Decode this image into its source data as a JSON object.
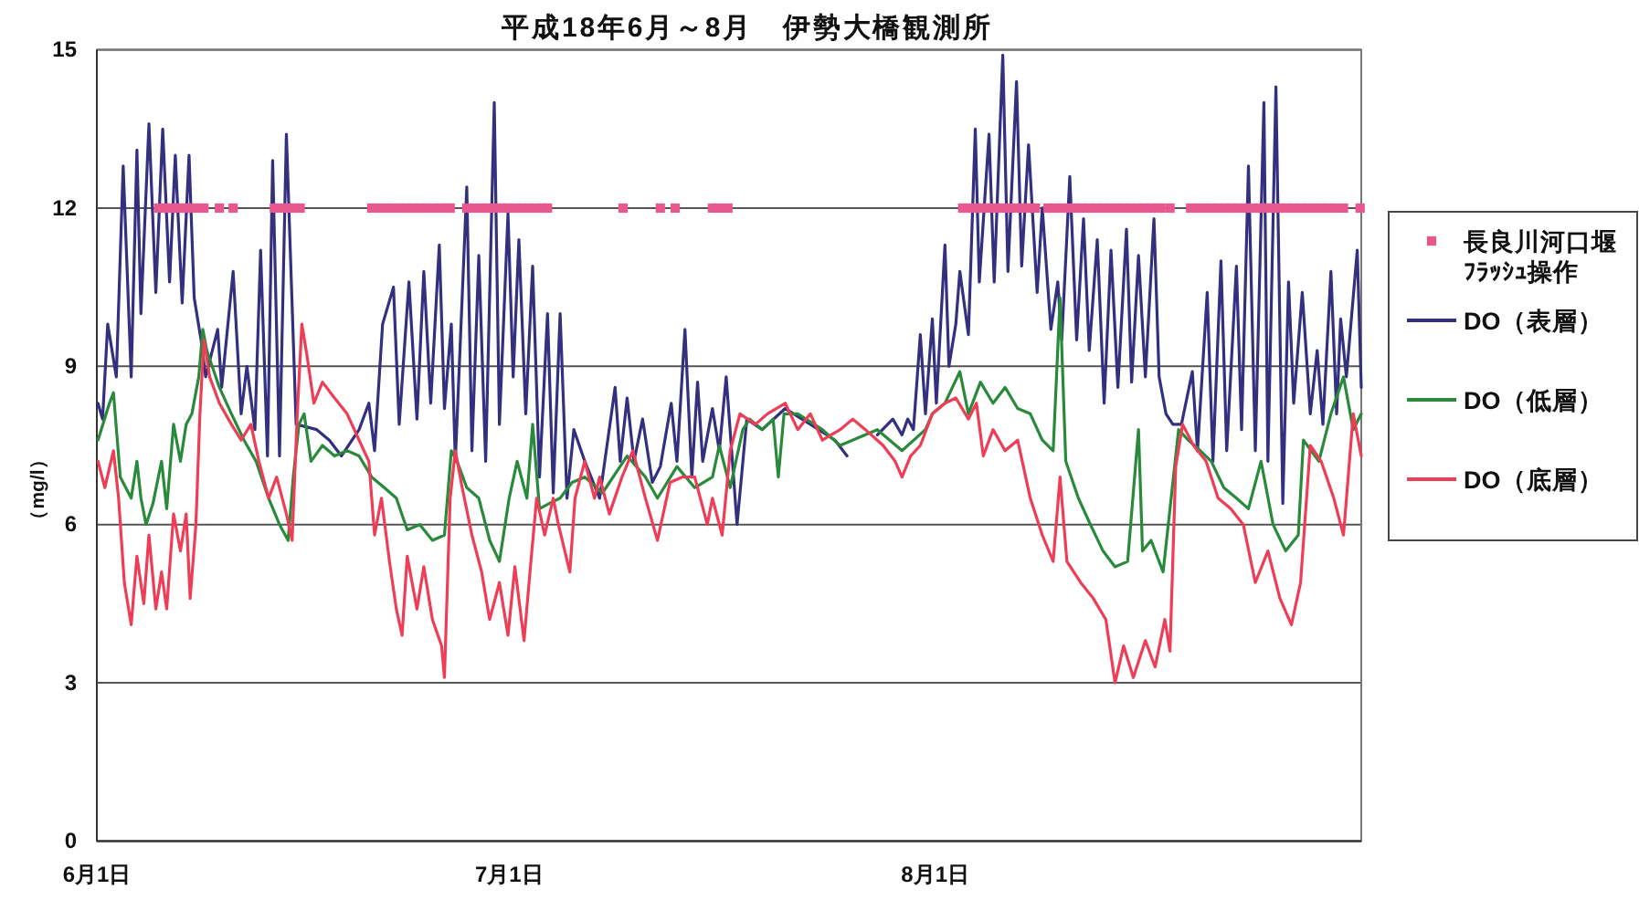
{
  "chart_data": {
    "type": "line",
    "title": "平成18年6月～8月　伊勢大橋観測所",
    "ylabel": "（mg/l）",
    "xlim": [
      "--06-01",
      "--09-01"
    ],
    "ylim": [
      0,
      15
    ],
    "xticks": [
      {
        "value": "--06-01",
        "label": "6月1日"
      },
      {
        "value": "--07-01",
        "label": "7月1日"
      },
      {
        "value": "--08-01",
        "label": "8月1日"
      }
    ],
    "yticks": [
      0,
      3,
      6,
      9,
      12,
      15
    ],
    "grid": "y",
    "legend": "right",
    "series": [
      {
        "name": "長良川河口堰ﾌﾗｯｼｭ操作",
        "type": "scatter",
        "color": "#e8588e",
        "marker": "square",
        "x": [
          "--06-05T12:00",
          "--06-06T00:00",
          "--06-06T12:00",
          "--06-07T00:00",
          "--06-07T12:00",
          "--06-08T00:00",
          "--06-08T12:00",
          "--06-08T19:00",
          "--06-09T22:00",
          "--06-10T22:00",
          "--06-13T22:00",
          "--06-14T10:00",
          "--06-14T22:00",
          "--06-15T10:00",
          "--06-15T19:00",
          "--06-21T00:00",
          "--06-21T12:00",
          "--06-22T00:00",
          "--06-22T12:00",
          "--06-23T00:00",
          "--06-23T12:00",
          "--06-24T00:00",
          "--06-24T12:00",
          "--06-25T00:00",
          "--06-25T12:00",
          "--06-26T00:00",
          "--06-26T12:00",
          "--06-26T17:00",
          "--06-27T22:00",
          "--06-28T10:00",
          "--06-28T22:00",
          "--06-29T10:00",
          "--06-29T22:00",
          "--06-30T10:00",
          "--06-30T22:00",
          "--07-01T10:00",
          "--07-01T22:00",
          "--07-02T10:00",
          "--07-02T22:00",
          "--07-03T10:00",
          "--07-03T19:00",
          "--07-09T07:00",
          "--07-12T00:00",
          "--07-13T02:00",
          "--07-15T19:00",
          "--07-16T07:00",
          "--07-16T22:00",
          "--08-03T00:00",
          "--08-03T12:00",
          "--08-04T00:00",
          "--08-04T12:00",
          "--08-05T00:00",
          "--08-05T12:00",
          "--08-06T00:00",
          "--08-06T12:00",
          "--08-07T00:00",
          "--08-07T12:00",
          "--08-08T00:00",
          "--08-08T07:00",
          "--08-09T05:00",
          "--08-09T17:00",
          "--08-10T05:00",
          "--08-10T17:00",
          "--08-11T05:00",
          "--08-11T17:00",
          "--08-12T05:00",
          "--08-12T17:00",
          "--08-13T05:00",
          "--08-13T17:00",
          "--08-14T05:00",
          "--08-14T17:00",
          "--08-15T05:00",
          "--08-15T17:00",
          "--08-16T05:00",
          "--08-16T17:00",
          "--08-17T05:00",
          "--08-17T10:00",
          "--08-18T02:00",
          "--08-19T14:00",
          "--08-20T02:00",
          "--08-20T14:00",
          "--08-21T02:00",
          "--08-21T14:00",
          "--08-22T02:00",
          "--08-22T14:00",
          "--08-23T02:00",
          "--08-23T14:00",
          "--08-24T02:00",
          "--08-24T14:00",
          "--08-25T02:00",
          "--08-25T14:00",
          "--08-26T02:00",
          "--08-26T14:00",
          "--08-27T02:00",
          "--08-27T14:00",
          "--08-28T02:00",
          "--08-28T14:00",
          "--08-29T02:00",
          "--08-29T14:00",
          "--08-30T02:00",
          "--08-30T17:00",
          "--08-31T22:00"
        ],
        "values": [
          12,
          12,
          12,
          12,
          12,
          12,
          12,
          12,
          12,
          12,
          12,
          12,
          12,
          12,
          12,
          12,
          12,
          12,
          12,
          12,
          12,
          12,
          12,
          12,
          12,
          12,
          12,
          12,
          12,
          12,
          12,
          12,
          12,
          12,
          12,
          12,
          12,
          12,
          12,
          12,
          12,
          12,
          12,
          12,
          12,
          12,
          12,
          12,
          12,
          12,
          12,
          12,
          12,
          12,
          12,
          12,
          12,
          12,
          12,
          12,
          12,
          12,
          12,
          12,
          12,
          12,
          12,
          12,
          12,
          12,
          12,
          12,
          12,
          12,
          12,
          12,
          12,
          12,
          12,
          12,
          12,
          12,
          12,
          12,
          12,
          12,
          12,
          12,
          12,
          12,
          12,
          12,
          12,
          12,
          12,
          12,
          12,
          12,
          12,
          12,
          12,
          12
        ]
      },
      {
        "name": "DO（表層）",
        "color": "#33307f",
        "x": [
          "--06-01T02:00",
          "--06-01T10:00",
          "--06-01T19:00",
          "--06-02T10:00",
          "--06-02T22:00",
          "--06-03T12:00",
          "--06-03T22:00",
          "--06-04T05:00",
          "--06-04T19:00",
          "--06-05T07:00",
          "--06-05T19:00",
          "--06-06T07:00",
          "--06-06T17:00",
          "--06-07T05:00",
          "--06-07T17:00",
          "--06-08T02:00",
          "--06-08T14:00",
          "--06-08T22:00",
          "--06-09T19:00",
          "--06-10T02:00",
          "--06-10T22:00",
          "--06-11T12:00",
          "--06-11T22:00",
          "--06-12T12:00",
          "--06-12T22:00",
          "--06-13T10:00",
          "--06-13T19:00",
          "--06-14T07:00",
          "--06-14T19:00",
          "--06-15T12:00",
          "--06-17T00:00",
          "--06-17T22:00",
          "--06-18T19:00",
          "--06-20T02:00",
          "--06-20T19:00",
          "--06-21T05:00",
          "--06-21T19:00",
          "--06-22T14:00",
          "--06-23T00:00",
          "--06-23T17:00",
          "--06-24T07:00",
          "--06-24T19:00",
          "--06-25T07:00",
          "--06-25T22:00",
          "--06-26T07:00",
          "--06-26T19:00",
          "--06-27T02:00",
          "--06-27T22:00",
          "--06-28T07:00",
          "--06-28T19:00",
          "--06-29T07:00",
          "--06-29T22:00",
          "--06-30T07:00",
          "--06-30T22:00",
          "--07-01T07:00",
          "--07-01T17:00",
          "--07-02T05:00",
          "--07-02T17:00",
          "--07-03T05:00",
          "--07-03T19:00",
          "--07-04T05:00",
          "--07-04T17:00",
          "--07-05T05:00",
          "--07-05T17:00",
          "--07-06T12:00",
          "--07-07T14:00",
          "--07-08T17:00",
          "--07-09T02:00",
          "--07-09T14:00",
          "--07-10T02:00",
          "--07-10T17:00",
          "--07-11T10:00",
          "--07-12T00:00",
          "--07-12T19:00",
          "--07-13T05:00",
          "--07-13T19:00",
          "--07-14T07:00",
          "--07-14T17:00",
          "--07-15T02:00",
          "--07-15T19:00",
          "--07-16T07:00",
          "--07-16T19:00",
          "--07-17T14:00",
          "--07-18T07:00",
          "--07-19T10:00",
          "--07-21T02:00",
          "--07-22T22:00",
          "--07-24T17:00",
          "--07-25T14:00",
          "--07-26T12:00",
          "--07-27T19:00",
          "--07-28T22:00",
          "--07-29T14:00",
          "--07-30T00:00",
          "--07-30T10:00",
          "--07-30T22:00",
          "--07-31T07:00",
          "--07-31T19:00",
          "--08-01T02:00",
          "--08-01T17:00",
          "--08-02T00:00",
          "--08-02T12:00",
          "--08-02T19:00",
          "--08-03T10:00",
          "--08-03T22:00",
          "--08-04T05:00",
          "--08-04T22:00",
          "--08-05T07:00",
          "--08-05T22:00",
          "--08-06T07:00",
          "--08-06T22:00",
          "--08-07T07:00",
          "--08-07T19:00",
          "--08-08T10:00",
          "--08-08T19:00",
          "--08-09T10:00",
          "--08-09T22:00",
          "--08-10T05:00",
          "--08-10T19:00",
          "--08-11T07:00",
          "--08-11T19:00",
          "--08-12T05:00",
          "--08-12T19:00",
          "--08-13T07:00",
          "--08-13T19:00",
          "--08-14T07:00",
          "--08-14T22:00",
          "--08-15T07:00",
          "--08-15T19:00",
          "--08-16T07:00",
          "--08-16T22:00",
          "--08-17T07:00",
          "--08-17T19:00",
          "--08-18T07:00",
          "--08-18T22:00",
          "--08-19T17:00",
          "--08-20T02:00",
          "--08-20T19:00",
          "--08-21T05:00",
          "--08-21T19:00",
          "--08-22T05:00",
          "--08-22T22:00",
          "--08-23T07:00",
          "--08-23T19:00",
          "--08-24T07:00",
          "--08-24T22:00",
          "--08-25T05:00",
          "--08-25T19:00",
          "--08-26T07:00",
          "--08-26T17:00",
          "--08-27T02:00",
          "--08-27T17:00",
          "--08-28T07:00",
          "--08-28T19:00",
          "--08-29T05:00",
          "--08-29T19:00",
          "--08-30T05:00",
          "--08-30T12:00",
          "--08-30T22:00",
          "--08-31T17:00",
          "--09-01T00:00"
        ],
        "values": [
          8.3,
          8.0,
          9.8,
          8.8,
          12.8,
          8.8,
          13.1,
          10.0,
          13.6,
          10.4,
          13.5,
          10.6,
          13.0,
          10.2,
          13.0,
          10.3,
          9.5,
          8.8,
          9.7,
          8.6,
          10.8,
          8.1,
          9.0,
          7.8,
          11.2,
          7.3,
          12.9,
          7.3,
          13.4,
          7.9,
          7.8,
          7.6,
          7.3,
          7.8,
          8.3,
          7.4,
          9.8,
          10.5,
          7.9,
          10.6,
          8.0,
          10.8,
          8.3,
          11.3,
          8.2,
          9.8,
          7.2,
          12.4,
          7.4,
          11.1,
          7.2,
          14.0,
          7.9,
          11.9,
          8.8,
          11.4,
          8.1,
          10.9,
          6.9,
          10.0,
          6.6,
          10.0,
          6.5,
          7.8,
          7.2,
          6.5,
          8.6,
          7.2,
          8.4,
          7.2,
          8.0,
          6.8,
          7.1,
          8.3,
          7.2,
          9.7,
          6.9,
          8.7,
          7.2,
          8.2,
          7.4,
          8.8,
          6.0,
          8.0,
          7.8,
          8.2,
          7.9,
          7.6,
          7.3,
          null,
          7.7,
          8.0,
          7.7,
          8.0,
          7.8,
          9.6,
          8.1,
          9.9,
          8.3,
          11.3,
          9.0,
          9.8,
          10.8,
          9.6,
          13.5,
          10.6,
          13.4,
          10.6,
          14.9,
          10.8,
          14.4,
          10.9,
          13.2,
          10.4,
          12.0,
          9.7,
          10.6,
          9.5,
          12.6,
          9.5,
          11.8,
          9.3,
          11.4,
          8.3,
          11.2,
          8.6,
          11.6,
          8.7,
          11.1,
          8.8,
          11.8,
          8.8,
          8.1,
          7.9,
          7.9,
          8.9,
          7.4,
          10.4,
          7.2,
          11.0,
          7.4,
          10.9,
          7.8,
          12.8,
          7.4,
          14.0,
          7.2,
          14.3,
          6.4,
          10.6,
          8.3,
          10.4,
          8.1,
          9.3,
          7.9,
          10.8,
          8.1,
          9.9,
          8.8,
          11.2,
          8.6
        ]
      },
      {
        "name": "DO（低層）",
        "color": "#2a8a3c",
        "x": [
          "--06-01T02:00",
          "--06-01T22:00",
          "--06-02T05:00",
          "--06-02T17:00",
          "--06-03T12:00",
          "--06-03T22:00",
          "--06-04T05:00",
          "--06-04T14:00",
          "--06-05T02:00",
          "--06-05T17:00",
          "--06-06T02:00",
          "--06-06T14:00",
          "--06-07T02:00",
          "--06-07T12:00",
          "--06-07T22:00",
          "--06-08T10:00",
          "--06-08T17:00",
          "--06-09T00:00",
          "--06-09T22:00",
          "--06-10T19:00",
          "--06-11T17:00",
          "--06-12T14:00",
          "--06-13T12:00",
          "--06-14T07:00",
          "--06-14T22:00",
          "--06-15T07:00",
          "--06-15T17:00",
          "--06-16T02:00",
          "--06-16T14:00",
          "--06-17T10:00",
          "--06-18T07:00",
          "--06-19T05:00",
          "--06-20T02:00",
          "--06-21T00:00",
          "--06-21T22:00",
          "--06-22T19:00",
          "--06-23T14:00",
          "--06-24T12:00",
          "--06-25T10:00",
          "--06-26T07:00",
          "--06-26T19:00",
          "--06-27T05:00",
          "--06-27T22:00",
          "--06-28T19:00",
          "--06-29T14:00",
          "--06-30T07:00",
          "--07-01T00:00",
          "--07-01T14:00",
          "--07-02T07:00",
          "--07-02T17:00",
          "--07-03T05:00",
          "--07-03T22:00",
          "--07-04T17:00",
          "--07-05T14:00",
          "--07-06T12:00",
          "--07-07T19:00",
          "--07-09T14:00",
          "--07-10T22:00",
          "--07-11T19:00",
          "--07-13T05:00",
          "--07-14T12:00",
          "--07-15T19:00",
          "--07-16T07:00",
          "--07-17T02:00",
          "--07-18T00:00",
          "--07-18T12:00",
          "--07-19T10:00",
          "--07-20T05:00",
          "--07-20T14:00",
          "--07-21T00:00",
          "--07-22T00:00",
          "--07-23T19:00",
          "--07-25T02:00",
          "--07-27T19:00",
          "--07-29T14:00",
          "--07-31T07:00",
          "--07-31T19:00",
          "--08-01T17:00",
          "--08-02T19:00",
          "--08-03T10:00",
          "--08-04T07:00",
          "--08-05T05:00",
          "--08-06T02:00",
          "--08-07T00:00",
          "--08-07T22:00",
          "--08-08T19:00",
          "--08-09T14:00",
          "--08-10T02:00",
          "--08-10T12:00",
          "--08-11T10:00",
          "--08-12T07:00",
          "--08-13T05:00",
          "--08-14T02:00",
          "--08-15T00:00",
          "--08-15T19:00",
          "--08-16T02:00",
          "--08-16T17:00",
          "--08-17T14:00",
          "--08-18T02:00",
          "--08-18T17:00",
          "--08-19T10:00",
          "--08-20T07:00",
          "--08-21T02:00",
          "--08-22T00:00",
          "--08-22T22:00",
          "--08-23T19:00",
          "--08-24T17:00",
          "--08-25T14:00",
          "--08-26T12:00",
          "--08-27T10:00",
          "--08-27T19:00",
          "--08-28T22:00",
          "--08-29T19:00",
          "--08-30T17:00",
          "--08-31T10:00",
          "--09-01T00:00"
        ],
        "values": [
          7.6,
          8.3,
          8.5,
          6.9,
          6.5,
          7.2,
          6.5,
          6.0,
          6.4,
          7.2,
          6.3,
          7.9,
          7.2,
          7.9,
          8.1,
          8.8,
          9.7,
          9.3,
          8.6,
          8.1,
          7.6,
          7.2,
          6.5,
          6.0,
          5.7,
          6.9,
          7.9,
          8.1,
          7.2,
          7.5,
          7.3,
          7.4,
          7.3,
          6.9,
          6.7,
          6.5,
          5.9,
          6.0,
          5.7,
          5.8,
          7.4,
          7.2,
          6.7,
          6.5,
          5.7,
          5.3,
          6.5,
          7.2,
          6.5,
          7.9,
          6.3,
          6.4,
          6.5,
          6.8,
          6.9,
          6.6,
          7.3,
          6.9,
          6.5,
          7.1,
          6.7,
          6.9,
          7.5,
          6.7,
          7.8,
          8.0,
          7.8,
          8.0,
          6.9,
          8.1,
          8.1,
          7.8,
          7.5,
          7.8,
          7.4,
          7.8,
          8.1,
          8.3,
          8.9,
          8.1,
          8.7,
          8.3,
          8.6,
          8.2,
          8.1,
          7.6,
          7.4,
          10.3,
          7.2,
          6.5,
          6.0,
          5.5,
          5.2,
          5.3,
          7.8,
          5.5,
          5.7,
          5.1,
          6.3,
          7.8,
          7.6,
          7.4,
          7.2,
          6.7,
          6.5,
          6.3,
          7.2,
          6.0,
          5.5,
          5.8,
          7.6,
          7.2,
          8.1,
          8.8,
          7.8,
          8.1
        ]
      },
      {
        "name": "DO（底層）",
        "color": "#ee3d56",
        "x": [
          "--06-01T02:00",
          "--06-01T14:00",
          "--06-02T05:00",
          "--06-02T14:00",
          "--06-03T00:00",
          "--06-03T12:00",
          "--06-03T22:00",
          "--06-04T10:00",
          "--06-04T19:00",
          "--06-05T07:00",
          "--06-05T17:00",
          "--06-06T02:00",
          "--06-06T14:00",
          "--06-07T02:00",
          "--06-07T12:00",
          "--06-07T19:00",
          "--06-08T05:00",
          "--06-08T12:00",
          "--06-08T19:00",
          "--06-09T05:00",
          "--06-09T22:00",
          "--06-10T19:00",
          "--06-11T12:00",
          "--06-12T05:00",
          "--06-12T19:00",
          "--06-13T12:00",
          "--06-14T02:00",
          "--06-14T19:00",
          "--06-15T05:00",
          "--06-15T14:00",
          "--06-15T22:00",
          "--06-16T07:00",
          "--06-16T19:00",
          "--06-17T10:00",
          "--06-18T07:00",
          "--06-19T05:00",
          "--06-20T02:00",
          "--06-20T19:00",
          "--06-21T05:00",
          "--06-21T17:00",
          "--06-22T07:00",
          "--06-22T19:00",
          "--06-23T05:00",
          "--06-23T14:00",
          "--06-24T07:00",
          "--06-24T19:00",
          "--06-25T10:00",
          "--06-26T02:00",
          "--06-26T07:00",
          "--06-26T17:00",
          "--06-27T02:00",
          "--06-27T14:00",
          "--06-28T07:00",
          "--06-29T00:00",
          "--06-29T14:00",
          "--06-30T07:00",
          "--06-30T22:00",
          "--07-01T10:00",
          "--07-02T02:00",
          "--07-02T14:00",
          "--07-03T00:00",
          "--07-03T14:00",
          "--07-04T05:00",
          "--07-04T14:00",
          "--07-05T10:00",
          "--07-05T19:00",
          "--07-06T12:00",
          "--07-07T05:00",
          "--07-07T14:00",
          "--07-08T07:00",
          "--07-09T05:00",
          "--07-10T00:00",
          "--07-10T22:00",
          "--07-11T19:00",
          "--07-12T17:00",
          "--07-13T14:00",
          "--07-14T12:00",
          "--07-15T10:00",
          "--07-15T19:00",
          "--07-16T12:00",
          "--07-17T02:00",
          "--07-17T19:00",
          "--07-18T22:00",
          "--07-19T19:00",
          "--07-21T02:00",
          "--07-22T00:00",
          "--07-22T22:00",
          "--07-23T19:00",
          "--07-25T02:00",
          "--07-26T00:00",
          "--07-26T22:00",
          "--07-28T05:00",
          "--07-29T02:00",
          "--07-29T14:00",
          "--07-30T05:00",
          "--07-30T22:00",
          "--07-31T19:00",
          "--08-01T17:00",
          "--08-02T12:00",
          "--08-03T10:00",
          "--08-04T00:00",
          "--08-04T12:00",
          "--08-05T05:00",
          "--08-06T02:00",
          "--08-07T00:00",
          "--08-07T22:00",
          "--08-08T19:00",
          "--08-09T14:00",
          "--08-10T02:00",
          "--08-10T14:00",
          "--08-11T14:00",
          "--08-12T12:00",
          "--08-13T10:00",
          "--08-14T02:00",
          "--08-14T17:00",
          "--08-15T10:00",
          "--08-16T07:00",
          "--08-17T00:00",
          "--08-17T17:00",
          "--08-18T02:00",
          "--08-18T12:00",
          "--08-19T00:00",
          "--08-19T19:00",
          "--08-20T17:00",
          "--08-21T14:00",
          "--08-22T12:00",
          "--08-23T10:00",
          "--08-24T07:00",
          "--08-25T05:00",
          "--08-26T02:00",
          "--08-26T22:00",
          "--08-27T14:00",
          "--08-28T07:00",
          "--08-29T02:00",
          "--08-30T00:00",
          "--08-30T17:00",
          "--08-31T10:00",
          "--09-01T00:00"
        ],
        "values": [
          7.2,
          6.7,
          7.4,
          6.5,
          4.9,
          4.1,
          5.4,
          4.5,
          5.8,
          4.4,
          5.1,
          4.4,
          6.2,
          5.5,
          6.2,
          4.6,
          6.0,
          8.1,
          9.5,
          8.8,
          8.3,
          7.9,
          7.6,
          7.9,
          7.2,
          6.5,
          6.9,
          6.2,
          5.7,
          8.1,
          9.8,
          9.2,
          8.3,
          8.7,
          8.4,
          8.1,
          7.6,
          7.2,
          5.8,
          6.5,
          5.3,
          4.4,
          3.9,
          5.4,
          4.4,
          5.2,
          4.2,
          3.7,
          3.1,
          6.5,
          7.4,
          6.7,
          5.8,
          5.1,
          4.2,
          4.9,
          3.9,
          5.2,
          3.8,
          5.3,
          6.5,
          5.8,
          6.5,
          6.0,
          5.1,
          6.5,
          7.2,
          6.5,
          6.9,
          6.2,
          6.9,
          7.4,
          6.5,
          5.7,
          6.8,
          6.9,
          6.9,
          6.0,
          6.5,
          5.8,
          7.4,
          8.1,
          7.9,
          8.1,
          8.3,
          7.8,
          8.1,
          7.6,
          7.8,
          8.0,
          7.8,
          7.5,
          7.2,
          6.9,
          7.3,
          7.5,
          8.1,
          8.3,
          8.4,
          8.0,
          8.3,
          7.3,
          7.8,
          7.4,
          7.6,
          6.5,
          5.8,
          5.3,
          6.9,
          5.3,
          4.9,
          4.6,
          4.2,
          3.0,
          3.7,
          3.1,
          3.8,
          3.3,
          4.2,
          3.6,
          7.1,
          7.9,
          7.5,
          7.2,
          6.5,
          6.3,
          6.0,
          4.9,
          5.5,
          4.6,
          4.1,
          4.9,
          7.5,
          7.2,
          6.5,
          5.8,
          8.1,
          7.3
        ]
      }
    ]
  }
}
